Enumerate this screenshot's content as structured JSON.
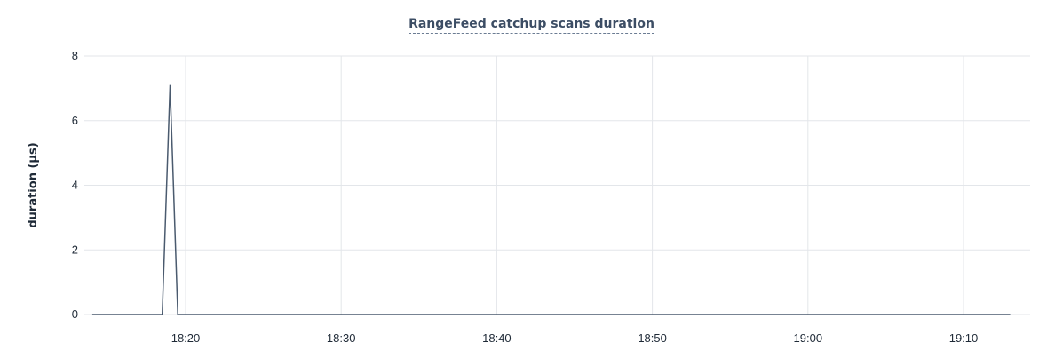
{
  "chart": {
    "title": "RangeFeed catchup scans duration"
  },
  "colors": {
    "line": "#4a5a6e",
    "grid": "#e3e6ea",
    "text": "#1f2a37",
    "title": "#3c4d64"
  },
  "chart_data": {
    "type": "line",
    "title": "RangeFeed catchup scans duration",
    "xlabel": "",
    "ylabel": "duration (µs)",
    "ylim": [
      0,
      8
    ],
    "xlim": [
      "18:14",
      "19:13"
    ],
    "grid": true,
    "x_ticks": [
      "18:20",
      "18:30",
      "18:40",
      "18:50",
      "19:00",
      "19:10"
    ],
    "y_ticks": [
      0,
      2,
      4,
      6,
      8
    ],
    "series": [
      {
        "x": [
          "18:14",
          "18:18:30",
          "18:19",
          "18:19:30",
          "18:20",
          "19:13"
        ],
        "values": [
          0,
          0,
          7.1,
          0,
          0,
          0
        ]
      }
    ]
  }
}
